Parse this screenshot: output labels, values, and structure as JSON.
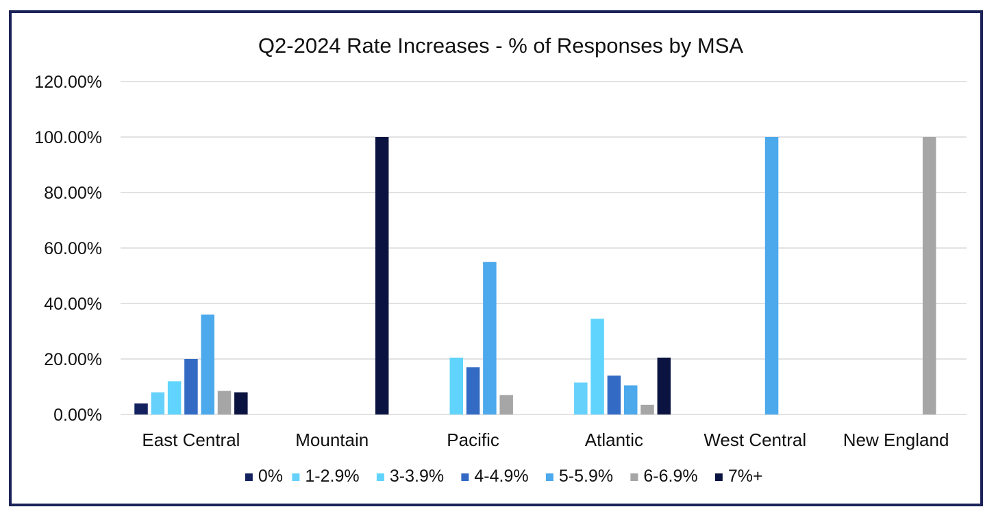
{
  "chart_data": {
    "type": "bar",
    "title": "Q2-2024 Rate Increases - % of Responses by MSA",
    "xlabel": "",
    "ylabel": "",
    "ylim": [
      0,
      120
    ],
    "yticks": [
      0,
      20,
      40,
      60,
      80,
      100,
      120
    ],
    "ytick_labels": [
      "0.00%",
      "20.00%",
      "40.00%",
      "60.00%",
      "80.00%",
      "100.00%",
      "120.00%"
    ],
    "grid": true,
    "legend_position": "bottom",
    "categories": [
      "East Central",
      "Mountain",
      "Pacific",
      "Atlantic",
      "West Central",
      "New England"
    ],
    "series": [
      {
        "name": "0%",
        "color": "#13215e",
        "values": [
          4,
          0,
          0,
          0,
          0,
          0
        ]
      },
      {
        "name": "1-2.9%",
        "color": "#66d2fb",
        "values": [
          8,
          0,
          0,
          11.5,
          0,
          0
        ]
      },
      {
        "name": "3-3.9%",
        "color": "#60d4fc",
        "values": [
          12,
          0,
          20.5,
          34.5,
          0,
          0
        ]
      },
      {
        "name": "4-4.9%",
        "color": "#336bc4",
        "values": [
          20,
          0,
          17,
          14,
          0,
          0
        ]
      },
      {
        "name": "5-5.9%",
        "color": "#4ba9ec",
        "values": [
          36,
          0,
          55,
          10.5,
          100,
          0
        ]
      },
      {
        "name": "6-6.9%",
        "color": "#a6a6a6",
        "values": [
          8.5,
          0,
          7,
          3.5,
          0,
          100
        ]
      },
      {
        "name": "7%+",
        "color": "#0b1340",
        "values": [
          8,
          100,
          0,
          20.5,
          0,
          0
        ]
      }
    ]
  }
}
